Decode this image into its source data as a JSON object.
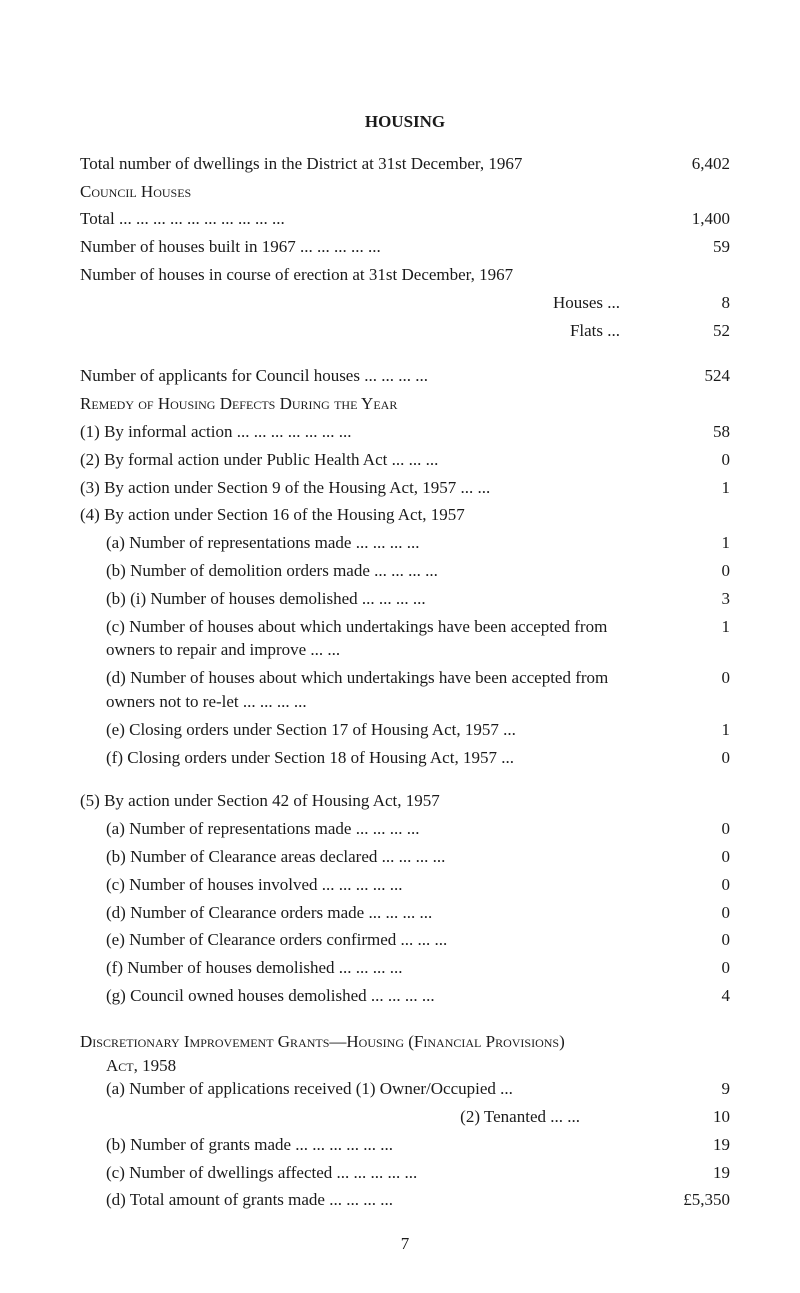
{
  "title": "HOUSING",
  "lines": {
    "l1": "Total number of dwellings in the District at 31st December, 1967",
    "l1v": "6,402",
    "l2": "Council Houses",
    "l3": "Total  ...   ...   ...   ...   ...   ...   ...   ...   ...   ...",
    "l3v": "1,400",
    "l4": "Number of houses built in 1967   ...   ...   ...   ...   ...",
    "l4v": "59",
    "l5": "Number of houses in course of erection at 31st December, 1967",
    "l6": "Houses  ...",
    "l6v": "8",
    "l7": "Flats     ...",
    "l7v": "52",
    "l8": "Number of applicants for Council houses ...   ...   ...   ...",
    "l8v": "524",
    "l9": "Remedy of Housing Defects During the Year",
    "l10": "(1) By informal action ...   ...   ...   ...   ...   ...   ...",
    "l10v": "58",
    "l11": "(2) By formal action under Public Health Act   ...   ...   ...",
    "l11v": "0",
    "l12": "(3) By action under Section 9 of the Housing Act, 1957 ...   ...",
    "l12v": "1",
    "l13": "(4) By action under Section 16 of the Housing Act, 1957",
    "l14": "(a) Number of representations made   ...   ...   ...   ...",
    "l14v": "1",
    "l15": "(b) Number of demolition orders made ...   ...   ...   ...",
    "l15v": "0",
    "l16": "(b) (i) Number of houses demolished ...   ...   ...   ...",
    "l16v": "3",
    "l17": "(c) Number of houses about which undertakings have been accepted from owners to repair and improve   ...   ...",
    "l17v": "1",
    "l18": "(d) Number of houses about which undertakings have been accepted from owners not to re-let ...   ...   ...   ...",
    "l18v": "0",
    "l19": "(e) Closing orders under Section 17 of Housing Act, 1957 ...",
    "l19v": "1",
    "l20": "(f) Closing orders under Section 18 of Housing Act, 1957 ...",
    "l20v": "0",
    "l21": "(5) By action under Section 42 of Housing Act, 1957",
    "l22": "(a) Number of representations made   ...   ...   ...   ...",
    "l22v": "0",
    "l23": "(b) Number of Clearance areas declared ...   ...   ...   ...",
    "l23v": "0",
    "l24": "(c) Number of houses involved ...   ...   ...   ...   ...",
    "l24v": "0",
    "l25": "(d) Number of Clearance orders made ...   ...   ...   ...",
    "l25v": "0",
    "l26": "(e) Number of Clearance orders confirmed ...   ...   ...",
    "l26v": "0",
    "l27": "(f) Number of houses demolished   ...   ...   ...   ...",
    "l27v": "0",
    "l28": "(g) Council owned houses demolished ...   ...   ...   ...",
    "l28v": "4",
    "l29a": "Discretionary Improvement Grants—Housing (Financial Provisions)",
    "l29b": "Act, 1958",
    "l30": "(a) Number of applications received (1) Owner/Occupied ...",
    "l30v": "9",
    "l31": "(2) Tenanted  ...   ...",
    "l31v": "10",
    "l32": "(b) Number of grants made   ...   ...   ...   ...   ...   ...",
    "l32v": "19",
    "l33": "(c) Number of dwellings affected ...   ...   ...   ...   ...",
    "l33v": "19",
    "l34": "(d) Total amount of grants made   ...   ...   ...   ...",
    "l34v": "£5,350"
  },
  "pageNumber": "7"
}
